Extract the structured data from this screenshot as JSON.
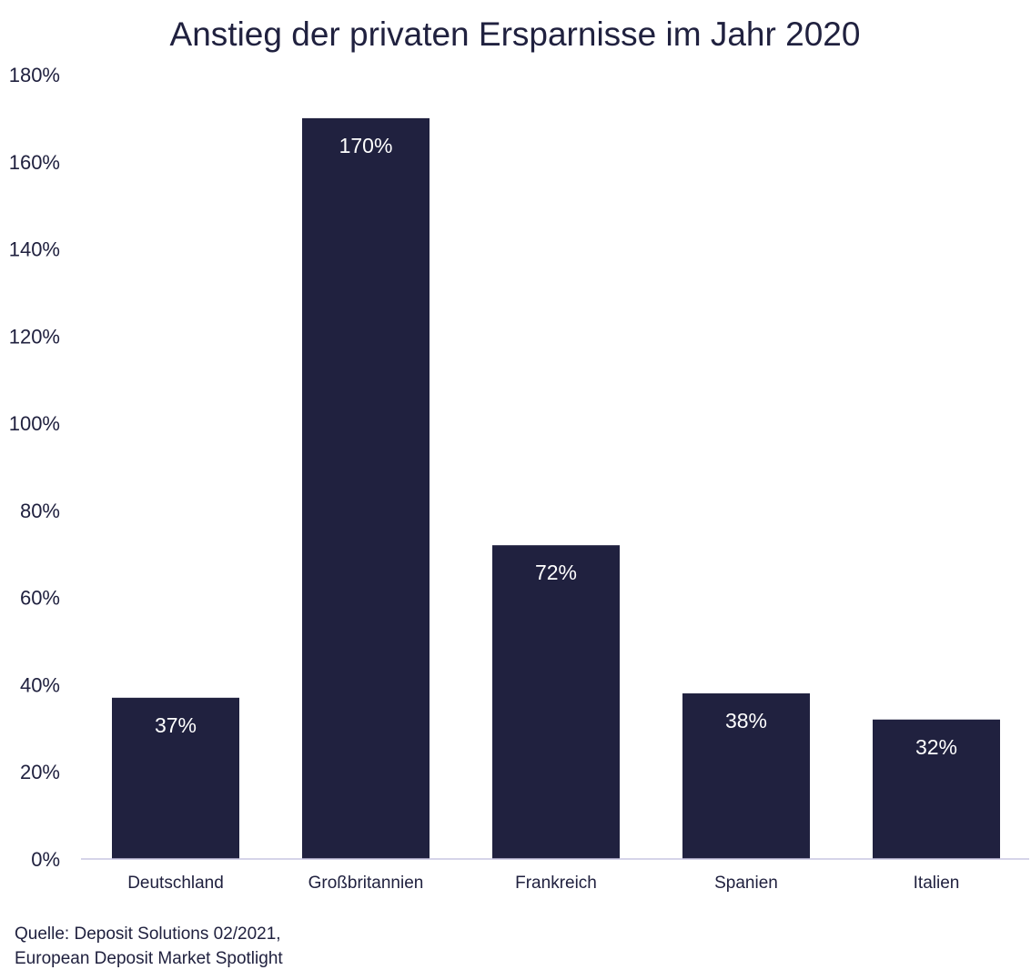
{
  "chart_data": {
    "type": "bar",
    "title": "Anstieg der privaten Ersparnisse im Jahr 2020",
    "xlabel": "",
    "ylabel": "",
    "categories": [
      "Deutschland",
      "Großbritannien",
      "Frankreich",
      "Spanien",
      "Italien"
    ],
    "values": [
      37,
      170,
      72,
      38,
      32
    ],
    "data_labels": [
      "37%",
      "170%",
      "72%",
      "38%",
      "32%"
    ],
    "ylim": [
      0,
      180
    ],
    "yticks": [
      0,
      20,
      40,
      60,
      80,
      100,
      120,
      140,
      160,
      180
    ],
    "ytick_labels": [
      "0%",
      "20%",
      "40%",
      "60%",
      "80%",
      "100%",
      "120%",
      "140%",
      "160%",
      "180%"
    ],
    "grid": false,
    "legend": "none",
    "colors": {
      "bar": "#20213f",
      "axis": "#c9c6e2",
      "label": "#ffffff"
    }
  },
  "source": {
    "line1": "Quelle: Deposit Solutions 02/2021,",
    "line2": "European Deposit Market Spotlight"
  }
}
